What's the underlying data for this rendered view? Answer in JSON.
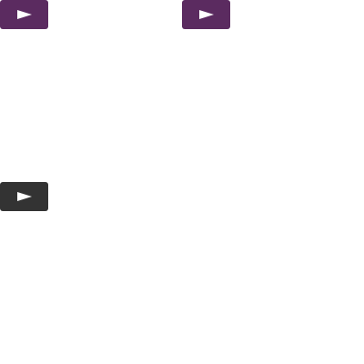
{
  "buttons": [
    {
      "icon": "play-icon",
      "color": "#5b2b60"
    },
    {
      "icon": "play-icon",
      "color": "#5b2b60"
    },
    {
      "icon": "play-icon",
      "color": "#333333"
    }
  ],
  "icon_color": "#ffffff"
}
